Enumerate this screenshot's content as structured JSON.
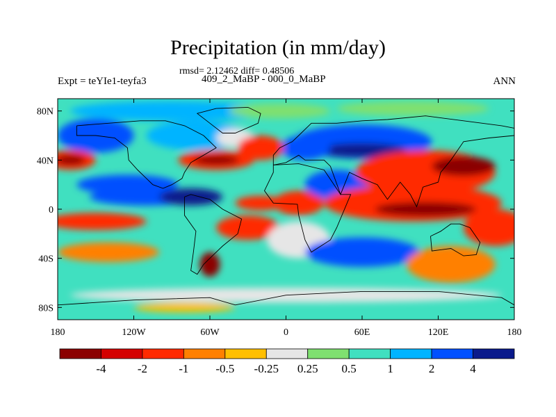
{
  "title": "Precipitation (in mm/day)",
  "stats": "rmsd= 2.12462 diff= 0.48506",
  "case": "409_2_MaBP - 000_0_MaBP",
  "expt": "Expt = teYIe1-teyfa3",
  "period": "ANN",
  "map": {
    "lon_range": [
      -180,
      180
    ],
    "lat_range": [
      -90,
      90
    ],
    "x_ticks": [
      {
        "value": -180,
        "label": "180"
      },
      {
        "value": -120,
        "label": "120W"
      },
      {
        "value": -60,
        "label": "60W"
      },
      {
        "value": 0,
        "label": "0"
      },
      {
        "value": 60,
        "label": "60E"
      },
      {
        "value": 120,
        "label": "120E"
      },
      {
        "value": 180,
        "label": "180"
      }
    ],
    "y_ticks": [
      {
        "value": 80,
        "label": "80N"
      },
      {
        "value": 40,
        "label": "40N"
      },
      {
        "value": 0,
        "label": "0"
      },
      {
        "value": -40,
        "label": "40S"
      },
      {
        "value": -80,
        "label": "80S"
      }
    ],
    "background_color": "#40e0c0"
  },
  "colorbar": {
    "colors": [
      "#8b0000",
      "#d40000",
      "#ff2a00",
      "#ff8000",
      "#ffbf00",
      "#e6e6e6",
      "#7fe070",
      "#40e0c0",
      "#00b4ff",
      "#0050ff",
      "#0a1a8c"
    ],
    "labels": [
      "-4",
      "-2",
      "-1",
      "-0.5",
      "-0.25",
      "0.25",
      "0.5",
      "1",
      "2",
      "4"
    ]
  },
  "field_blobs": [
    {
      "lon": -90,
      "lat": 80,
      "rlon": 80,
      "rlat": 8,
      "color": "#00b4ff"
    },
    {
      "lon": -5,
      "lat": 80,
      "rlon": 40,
      "rlat": 6,
      "color": "#7fe070"
    },
    {
      "lon": 100,
      "lat": 82,
      "rlon": 60,
      "rlat": 6,
      "color": "#7fe070"
    },
    {
      "lon": -150,
      "lat": 60,
      "rlon": 30,
      "rlat": 14,
      "color": "#0050ff"
    },
    {
      "lon": -70,
      "lat": 60,
      "rlon": 40,
      "rlat": 12,
      "color": "#00b4ff"
    },
    {
      "lon": 60,
      "lat": 55,
      "rlon": 55,
      "rlat": 14,
      "color": "#0050ff"
    },
    {
      "lon": 60,
      "lat": 48,
      "rlon": 35,
      "rlat": 6,
      "color": "#0a1a8c"
    },
    {
      "lon": 15,
      "lat": 50,
      "rlon": 20,
      "rlat": 10,
      "color": "#0050ff"
    },
    {
      "lon": -40,
      "lat": 58,
      "rlon": 15,
      "rlat": 8,
      "color": "#e6e6e6"
    },
    {
      "lon": -170,
      "lat": 40,
      "rlon": 20,
      "rlat": 8,
      "color": "#ff2a00"
    },
    {
      "lon": -170,
      "lat": 40,
      "rlon": 12,
      "rlat": 4,
      "color": "#8b0000"
    },
    {
      "lon": -55,
      "lat": 40,
      "rlon": 30,
      "rlat": 8,
      "color": "#ff2a00"
    },
    {
      "lon": -55,
      "lat": 40,
      "rlon": 18,
      "rlat": 4,
      "color": "#8b0000"
    },
    {
      "lon": -20,
      "lat": 50,
      "rlon": 18,
      "rlat": 10,
      "color": "#ff2a00"
    },
    {
      "lon": -125,
      "lat": 20,
      "rlon": 40,
      "rlat": 8,
      "color": "#0050ff"
    },
    {
      "lon": -110,
      "lat": 10,
      "rlon": 45,
      "rlat": 7,
      "color": "#0050ff"
    },
    {
      "lon": -75,
      "lat": 10,
      "rlon": 25,
      "rlat": 7,
      "color": "#0a1a8c"
    },
    {
      "lon": -20,
      "lat": 5,
      "rlon": 20,
      "rlat": 6,
      "color": "#ff2a00"
    },
    {
      "lon": 10,
      "lat": 5,
      "rlon": 20,
      "rlat": 10,
      "color": "#ff2a00"
    },
    {
      "lon": 40,
      "lat": 20,
      "rlon": 25,
      "rlat": 12,
      "color": "#0050ff"
    },
    {
      "lon": 110,
      "lat": 30,
      "rlon": 55,
      "rlat": 18,
      "color": "#ff2a00"
    },
    {
      "lon": 100,
      "lat": 5,
      "rlon": 70,
      "rlat": 15,
      "color": "#ff2a00"
    },
    {
      "lon": 110,
      "lat": 0,
      "rlon": 40,
      "rlat": 6,
      "color": "#8b0000"
    },
    {
      "lon": 140,
      "lat": 35,
      "rlon": 25,
      "rlat": 8,
      "color": "#8b0000"
    },
    {
      "lon": 165,
      "lat": -15,
      "rlon": 25,
      "rlat": 15,
      "color": "#ff2a00"
    },
    {
      "lon": -150,
      "lat": -10,
      "rlon": 40,
      "rlat": 7,
      "color": "#ff2a00"
    },
    {
      "lon": -140,
      "lat": -35,
      "rlon": 40,
      "rlat": 8,
      "color": "#ff8000"
    },
    {
      "lon": -30,
      "lat": -15,
      "rlon": 25,
      "rlat": 10,
      "color": "#ff2a00"
    },
    {
      "lon": -60,
      "lat": -45,
      "rlon": 8,
      "rlat": 10,
      "color": "#8b0000"
    },
    {
      "lon": 10,
      "lat": -25,
      "rlon": 25,
      "rlat": 15,
      "color": "#e6e6e6"
    },
    {
      "lon": 60,
      "lat": -35,
      "rlon": 45,
      "rlat": 12,
      "color": "#0050ff"
    },
    {
      "lon": 130,
      "lat": -45,
      "rlon": 35,
      "rlat": 15,
      "color": "#ff8000"
    },
    {
      "lon": 0,
      "lat": -70,
      "rlon": 170,
      "rlat": 6,
      "color": "#e6e6e6"
    },
    {
      "lon": -80,
      "lat": -80,
      "rlon": 40,
      "rlat": 4,
      "color": "#ffbf00"
    }
  ],
  "coastline": [
    [
      [
        -165,
        68
      ],
      [
        -140,
        70
      ],
      [
        -115,
        72
      ],
      [
        -95,
        72
      ],
      [
        -80,
        68
      ],
      [
        -65,
        60
      ],
      [
        -55,
        50
      ],
      [
        -65,
        44
      ],
      [
        -75,
        38
      ],
      [
        -80,
        30
      ],
      [
        -82,
        25
      ],
      [
        -90,
        20
      ],
      [
        -97,
        17
      ],
      [
        -105,
        20
      ],
      [
        -117,
        32
      ],
      [
        -124,
        40
      ],
      [
        -125,
        50
      ],
      [
        -135,
        58
      ],
      [
        -150,
        60
      ],
      [
        -165,
        60
      ],
      [
        -165,
        68
      ]
    ],
    [
      [
        -55,
        82
      ],
      [
        -30,
        83
      ],
      [
        -20,
        78
      ],
      [
        -22,
        70
      ],
      [
        -40,
        62
      ],
      [
        -50,
        62
      ],
      [
        -60,
        70
      ],
      [
        -70,
        78
      ],
      [
        -55,
        82
      ]
    ],
    [
      [
        -80,
        10
      ],
      [
        -75,
        12
      ],
      [
        -60,
        8
      ],
      [
        -50,
        0
      ],
      [
        -35,
        -8
      ],
      [
        -38,
        -20
      ],
      [
        -50,
        -30
      ],
      [
        -58,
        -38
      ],
      [
        -65,
        -45
      ],
      [
        -70,
        -53
      ],
      [
        -75,
        -50
      ],
      [
        -73,
        -35
      ],
      [
        -71,
        -18
      ],
      [
        -80,
        -5
      ],
      [
        -80,
        10
      ]
    ],
    [
      [
        -10,
        36
      ],
      [
        10,
        37
      ],
      [
        30,
        32
      ],
      [
        43,
        12
      ],
      [
        51,
        12
      ],
      [
        40,
        -15
      ],
      [
        35,
        -25
      ],
      [
        20,
        -35
      ],
      [
        15,
        -25
      ],
      [
        10,
        -5
      ],
      [
        9,
        4
      ],
      [
        -10,
        5
      ],
      [
        -17,
        15
      ],
      [
        -10,
        30
      ],
      [
        -10,
        36
      ]
    ],
    [
      [
        -10,
        36
      ],
      [
        -10,
        44
      ],
      [
        -5,
        50
      ],
      [
        5,
        55
      ],
      [
        10,
        60
      ],
      [
        20,
        70
      ],
      [
        40,
        70
      ],
      [
        60,
        72
      ],
      [
        80,
        73
      ],
      [
        110,
        76
      ],
      [
        140,
        72
      ],
      [
        170,
        68
      ],
      [
        180,
        66
      ],
      [
        180,
        60
      ],
      [
        160,
        58
      ],
      [
        140,
        55
      ],
      [
        130,
        40
      ],
      [
        122,
        30
      ],
      [
        120,
        22
      ],
      [
        108,
        18
      ],
      [
        103,
        2
      ],
      [
        98,
        12
      ],
      [
        90,
        22
      ],
      [
        80,
        8
      ],
      [
        72,
        20
      ],
      [
        60,
        25
      ],
      [
        50,
        30
      ],
      [
        43,
        12
      ],
      [
        35,
        35
      ],
      [
        30,
        40
      ],
      [
        15,
        40
      ],
      [
        10,
        44
      ],
      [
        0,
        38
      ],
      [
        -10,
        36
      ]
    ],
    [
      [
        114,
        -22
      ],
      [
        122,
        -18
      ],
      [
        130,
        -12
      ],
      [
        137,
        -12
      ],
      [
        145,
        -15
      ],
      [
        153,
        -27
      ],
      [
        150,
        -37
      ],
      [
        140,
        -38
      ],
      [
        130,
        -32
      ],
      [
        115,
        -34
      ],
      [
        114,
        -22
      ]
    ],
    [
      [
        -180,
        -78
      ],
      [
        -120,
        -74
      ],
      [
        -60,
        -72
      ],
      [
        -40,
        -78
      ],
      [
        0,
        -70
      ],
      [
        60,
        -67
      ],
      [
        120,
        -67
      ],
      [
        170,
        -72
      ],
      [
        180,
        -78
      ]
    ]
  ]
}
